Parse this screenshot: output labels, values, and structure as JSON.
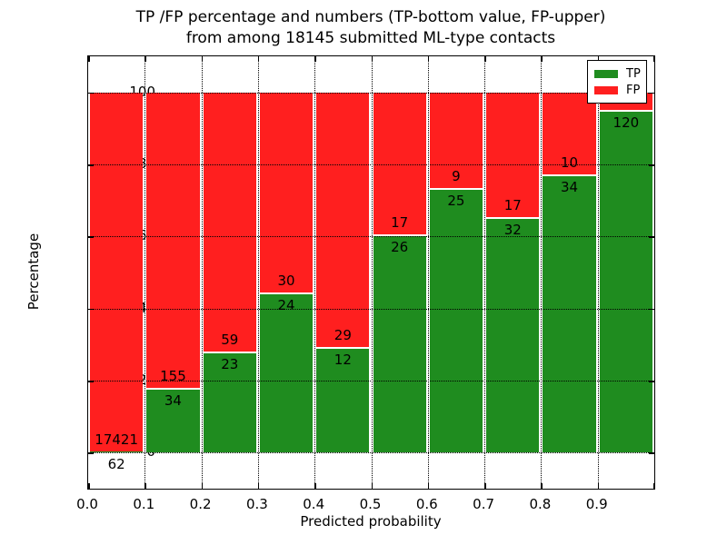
{
  "title": {
    "line1": "TP /FP percentage and numbers (TP-bottom value, FP-upper)",
    "line2": "from among 18145 submitted ML-type contacts"
  },
  "chart_data": {
    "type": "bar",
    "variant": "stacked-percentage",
    "title": "TP /FP percentage and numbers (TP-bottom value, FP-upper) from among 18145 submitted ML-type contacts",
    "xlabel": "Predicted probability",
    "ylabel": "Percentage",
    "total_submitted": 18145,
    "xlim": [
      0.0,
      1.0
    ],
    "ylim": [
      -10,
      110
    ],
    "ytick_values": [
      0,
      20,
      40,
      60,
      80,
      100
    ],
    "ytick_labels": [
      "0",
      "20",
      "40",
      "60",
      "80",
      "100"
    ],
    "xtick_positions": [
      0.0,
      0.1,
      0.2,
      0.3,
      0.4,
      0.5,
      0.6,
      0.7,
      0.8,
      0.9
    ],
    "xtick_labels": [
      "0.0",
      "0.1",
      "0.2",
      "0.3",
      "0.4",
      "0.5",
      "0.6",
      "0.7",
      "0.8",
      "0.9"
    ],
    "grid": true,
    "grid_style": "dotted",
    "legend": {
      "position": "upper-right",
      "entries": [
        {
          "label": "TP",
          "color": "#1f8c1f"
        },
        {
          "label": "FP",
          "color": "#ff1f1f"
        }
      ]
    },
    "bins": [
      {
        "range": [
          0.0,
          0.1
        ],
        "tp": 62,
        "fp": 17421,
        "fp_label_visible": true
      },
      {
        "range": [
          0.1,
          0.2
        ],
        "tp": 34,
        "fp": 155,
        "fp_label_visible": true
      },
      {
        "range": [
          0.2,
          0.3
        ],
        "tp": 23,
        "fp": 59,
        "fp_label_visible": true
      },
      {
        "range": [
          0.3,
          0.4
        ],
        "tp": 24,
        "fp": 30,
        "fp_label_visible": true
      },
      {
        "range": [
          0.4,
          0.5
        ],
        "tp": 12,
        "fp": 29,
        "fp_label_visible": true
      },
      {
        "range": [
          0.5,
          0.6
        ],
        "tp": 26,
        "fp": 17,
        "fp_label_visible": true
      },
      {
        "range": [
          0.6,
          0.7
        ],
        "tp": 25,
        "fp": 9,
        "fp_label_visible": true
      },
      {
        "range": [
          0.7,
          0.8
        ],
        "tp": 32,
        "fp": 17,
        "fp_label_visible": true
      },
      {
        "range": [
          0.8,
          0.9
        ],
        "tp": 34,
        "fp": 10,
        "fp_label_visible": true
      },
      {
        "range": [
          0.9,
          1.0
        ],
        "tp": 120,
        "fp": 6,
        "fp_label_visible": false
      }
    ],
    "colors": {
      "tp": "#1f8c1f",
      "fp": "#ff1f1f",
      "grid": "#000000",
      "text": "#000000",
      "background": "#ffffff",
      "bar_edge": "#ffffff"
    }
  }
}
